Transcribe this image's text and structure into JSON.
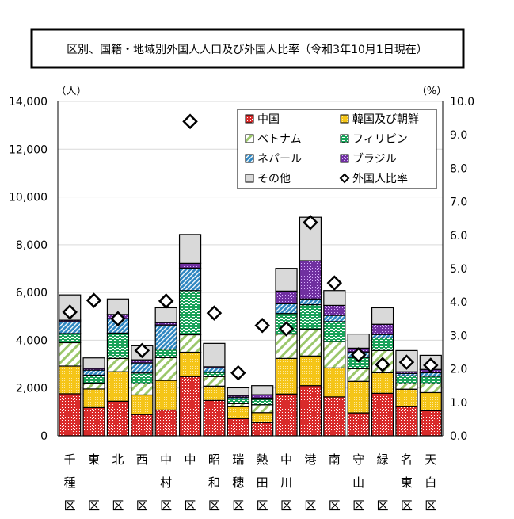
{
  "chart_data": {
    "type": "bar",
    "stacked": true,
    "title": "区別、国籍・地域別外国人人口及び外国人比率（令和3年10月1日現在）",
    "ylabel_left": "（人）",
    "ylabel_right": "（%）",
    "ylim": [
      0,
      14000
    ],
    "y2lim": [
      0,
      10
    ],
    "yticks": [
      "0",
      "2,000",
      "4,000",
      "6,000",
      "8,000",
      "10,000",
      "12,000",
      "14,000"
    ],
    "y2ticks": [
      "0.0",
      "1.0",
      "2.0",
      "3.0",
      "4.0",
      "5.0",
      "6.0",
      "7.0",
      "8.0",
      "9.0",
      "10.0"
    ],
    "grid": true,
    "legend_placement": "top-right",
    "categories": [
      "千種区",
      "東区",
      "北区",
      "西区",
      "中村区",
      "中区",
      "昭和区",
      "瑞穂区",
      "熱田区",
      "中川区",
      "港区",
      "南区",
      "守山区",
      "緑区",
      "名東区",
      "天白区"
    ],
    "series": [
      {
        "name": "中国",
        "color": "#d92b2b",
        "pattern": "checker",
        "values": [
          1760,
          1180,
          1450,
          890,
          1080,
          2480,
          1480,
          720,
          550,
          1750,
          2100,
          1630,
          960,
          1780,
          1220,
          1050
        ]
      },
      {
        "name": "韓国及び朝鮮",
        "color": "#f5c518",
        "pattern": "dots",
        "values": [
          1160,
          780,
          1230,
          820,
          1240,
          1020,
          600,
          500,
          420,
          1490,
          1240,
          1210,
          1320,
          860,
          730,
          760
        ]
      },
      {
        "name": "ベトナム",
        "color": "#9bc76b",
        "pattern": "light-diagonal",
        "values": [
          980,
          250,
          560,
          470,
          950,
          730,
          400,
          130,
          330,
          1020,
          1130,
          1100,
          530,
          930,
          230,
          370
        ]
      },
      {
        "name": "フィリピン",
        "color": "#1aa35a",
        "pattern": "dashes",
        "values": [
          380,
          330,
          1060,
          450,
          360,
          1850,
          180,
          200,
          230,
          860,
          1020,
          840,
          470,
          530,
          330,
          310
        ]
      },
      {
        "name": "ネパール",
        "color": "#2e86c1",
        "pattern": "diagonal",
        "values": [
          500,
          210,
          600,
          420,
          1010,
          940,
          180,
          70,
          50,
          410,
          240,
          260,
          230,
          140,
          100,
          150
        ]
      },
      {
        "name": "ブラジル",
        "color": "#7030a0",
        "pattern": "dots",
        "values": [
          60,
          70,
          180,
          130,
          100,
          200,
          50,
          70,
          140,
          530,
          1600,
          420,
          160,
          430,
          70,
          140
        ]
      },
      {
        "name": "その他",
        "color": "#d9d9d9",
        "pattern": "solid",
        "values": [
          1060,
          440,
          650,
          590,
          620,
          1210,
          980,
          320,
          380,
          950,
          1820,
          620,
          590,
          690,
          890,
          590
        ]
      }
    ],
    "line_series": {
      "name": "外国人比率",
      "axis": "right",
      "marker": "diamond",
      "values": [
        3.7,
        4.05,
        3.5,
        2.55,
        4.03,
        9.4,
        3.67,
        1.88,
        3.3,
        3.2,
        6.38,
        4.57,
        2.42,
        2.13,
        2.2,
        2.11
      ]
    }
  }
}
